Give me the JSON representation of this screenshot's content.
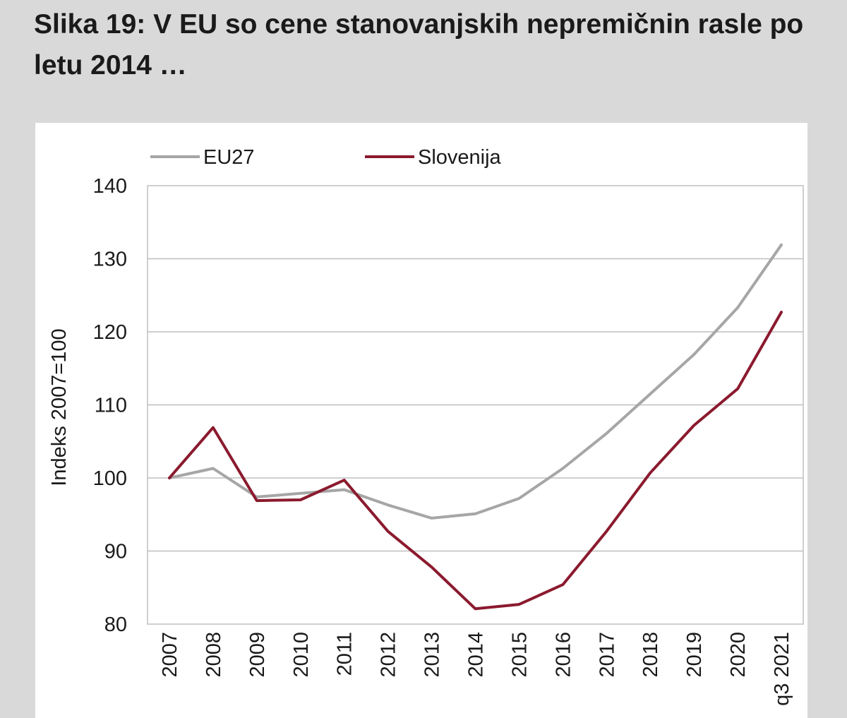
{
  "page": {
    "title": "Slika 19: V EU so cene stanovanjskih nepremičnin rasle po letu 2014 …"
  },
  "chart_data": {
    "type": "line",
    "title": "",
    "xlabel": "",
    "ylabel": "Indeks 2007=100",
    "x": [
      "2007",
      "2008",
      "2009",
      "2010",
      "2011",
      "2012",
      "2013",
      "2014",
      "2015",
      "2016",
      "2017",
      "2018",
      "2019",
      "2020",
      "q3 2021"
    ],
    "ylim": [
      80,
      140
    ],
    "yticks": [
      80,
      90,
      100,
      110,
      120,
      130,
      140
    ],
    "grid": true,
    "legend_position": "top",
    "series": [
      {
        "name": "EU27",
        "color": "#a6a6a6",
        "values": [
          100,
          101.3,
          97.4,
          97.9,
          98.4,
          96.3,
          94.5,
          95.1,
          97.2,
          101.3,
          106.1,
          111.5,
          116.9,
          123.3,
          131.9
        ]
      },
      {
        "name": "Slovenija",
        "color": "#8b1a2e",
        "values": [
          100,
          106.9,
          96.9,
          97.0,
          99.7,
          92.7,
          87.8,
          82.1,
          82.7,
          85.4,
          92.7,
          100.7,
          107.2,
          112.2,
          122.7
        ]
      }
    ]
  }
}
